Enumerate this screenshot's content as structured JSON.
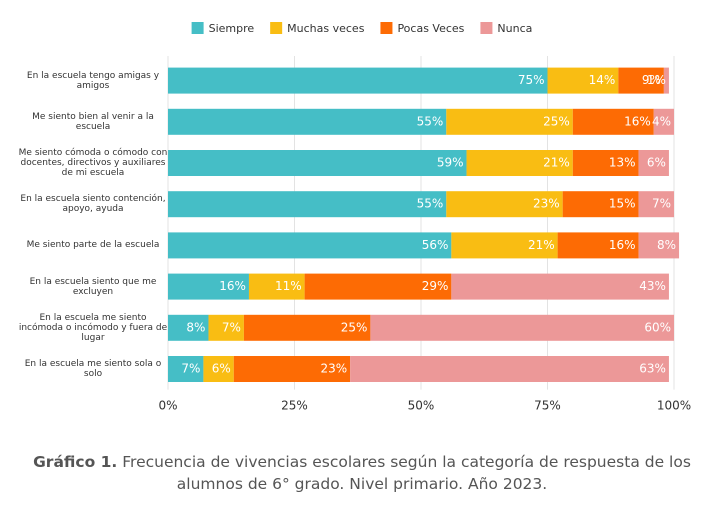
{
  "chart_data": {
    "type": "stacked-bar-horizontal",
    "categories": [
      "En la escuela tengo amigas y amigos",
      "Me siento bien al venir a la escuela",
      "Me siento cómoda o cómodo con docentes, directivos y auxiliares de mi escuela",
      "En la escuela siento contención, apoyo, ayuda",
      "Me siento parte de la escuela",
      "En la escuela siento que me excluyen",
      "En la escuela me siento incómoda o incómodo y fuera de lugar",
      "En la escuela me siento sola o solo"
    ],
    "series": [
      {
        "name": "Siempre",
        "color": "#45bec6",
        "values": [
          75,
          55,
          59,
          55,
          56,
          16,
          8,
          7
        ],
        "value_labels": [
          "75%",
          "55%",
          "59%",
          "55%",
          "56%",
          "16%",
          "8%",
          "7%"
        ]
      },
      {
        "name": "Muchas veces",
        "color": "#f9bd13",
        "values": [
          14,
          25,
          21,
          23,
          21,
          11,
          7,
          6
        ],
        "value_labels": [
          "14%",
          "25%",
          "21%",
          "23%",
          "21%",
          "11%",
          "7%",
          "6%"
        ]
      },
      {
        "name": "Pocas Veces",
        "color": "#fd6b04",
        "values": [
          9,
          16,
          13,
          15,
          16,
          29,
          25,
          23
        ],
        "value_labels": [
          "9%",
          "16%",
          "13%",
          "15%",
          "16%",
          "29%",
          "25%",
          "23%"
        ]
      },
      {
        "name": "Nunca",
        "color": "#ec9898",
        "values": [
          1,
          4,
          6,
          7,
          8,
          43,
          60,
          63
        ],
        "value_labels": [
          "1%",
          "4%",
          "6%",
          "7%",
          "8%",
          "43%",
          "60%",
          "63%"
        ]
      }
    ],
    "xlim": [
      0,
      100
    ],
    "xticks": [
      {
        "value": 0,
        "label": "0%"
      },
      {
        "value": 25,
        "label": "25%"
      },
      {
        "value": 50,
        "label": "50%"
      },
      {
        "value": 75,
        "label": "75%"
      },
      {
        "value": 100,
        "label": "100%"
      }
    ],
    "grid": true,
    "legend": "top",
    "caption_label": "Gráfico 1.",
    "caption": "Frecuencia de vivencias escolares según la categoría de respuesta de los alumnos de 6° grado. Nivel primario. Año 2023."
  }
}
